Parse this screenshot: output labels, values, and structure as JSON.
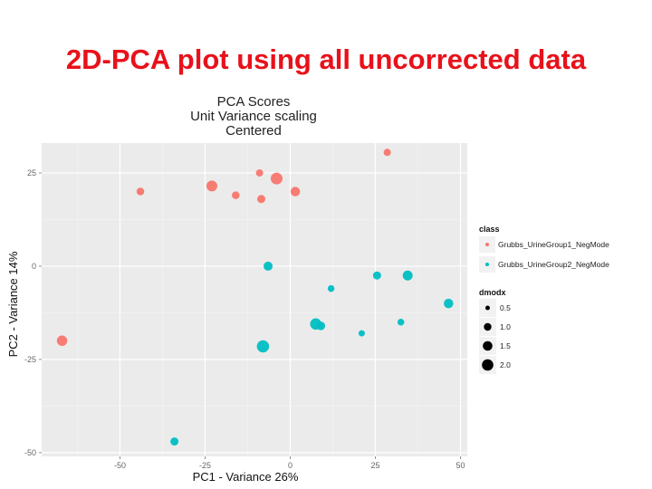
{
  "slide": {
    "title": "2D-PCA plot using all uncorrected data"
  },
  "chart_data": {
    "type": "scatter",
    "title_lines": [
      "PCA Scores",
      "Unit Variance scaling",
      "Centered"
    ],
    "xlabel": "PC1 - Variance 26%",
    "ylabel": "PC2 - Variance 14%",
    "xlim": [
      -73,
      52
    ],
    "ylim": [
      -51,
      33
    ],
    "xticks": [
      -50,
      -25,
      0,
      25,
      50
    ],
    "yticks": [
      -50,
      -25,
      0,
      25
    ],
    "grid": true,
    "legend_placement": "right",
    "legend": {
      "class_title": "class",
      "size_title": "dmodx",
      "size_levels": [
        "0.5",
        "1.0",
        "1.5",
        "2.0"
      ]
    },
    "series": [
      {
        "name": "Grubbs_UrineGroup1_NegMode",
        "color": "#f8766d",
        "points": [
          {
            "x": 28.5,
            "y": 30.5,
            "dmodx": 0.8
          },
          {
            "x": -9,
            "y": 25,
            "dmodx": 0.8
          },
          {
            "x": -4,
            "y": 23.5,
            "dmodx": 1.8
          },
          {
            "x": -23,
            "y": 21.5,
            "dmodx": 1.6
          },
          {
            "x": -44,
            "y": 20,
            "dmodx": 0.9
          },
          {
            "x": 1.5,
            "y": 20,
            "dmodx": 1.3
          },
          {
            "x": -16,
            "y": 19,
            "dmodx": 0.9
          },
          {
            "x": -8.5,
            "y": 18,
            "dmodx": 1.0
          },
          {
            "x": -67,
            "y": -20,
            "dmodx": 1.5
          }
        ]
      },
      {
        "name": "Grubbs_UrineGroup2_NegMode",
        "color": "#00bfc4",
        "points": [
          {
            "x": -6.5,
            "y": 0,
            "dmodx": 1.2
          },
          {
            "x": 25.5,
            "y": -2.5,
            "dmodx": 1.0
          },
          {
            "x": 34.5,
            "y": -2.5,
            "dmodx": 1.4
          },
          {
            "x": 12,
            "y": -6,
            "dmodx": 0.7
          },
          {
            "x": 46.5,
            "y": -10,
            "dmodx": 1.3
          },
          {
            "x": 7.5,
            "y": -15.5,
            "dmodx": 1.7
          },
          {
            "x": 9,
            "y": -16,
            "dmodx": 1.1
          },
          {
            "x": 32.5,
            "y": -15,
            "dmodx": 0.7
          },
          {
            "x": 21,
            "y": -18,
            "dmodx": 0.6
          },
          {
            "x": -8,
            "y": -21.5,
            "dmodx": 1.9
          },
          {
            "x": -34,
            "y": -47,
            "dmodx": 1.0
          }
        ]
      }
    ]
  }
}
